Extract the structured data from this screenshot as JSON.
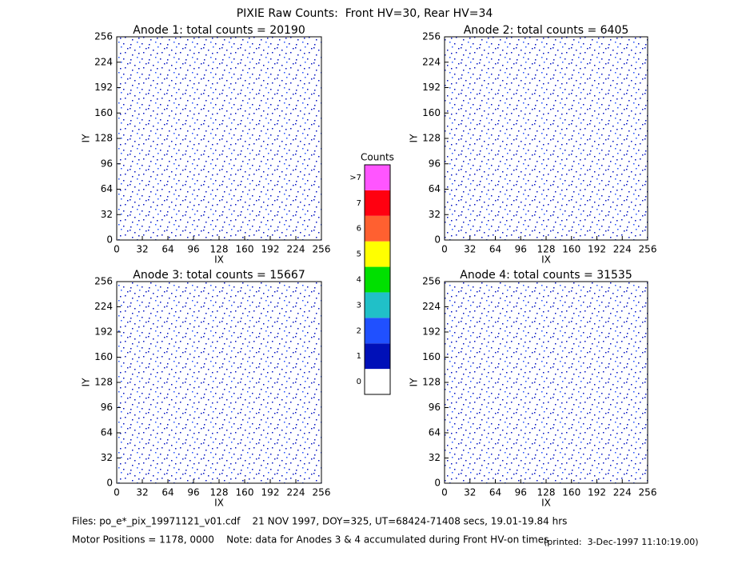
{
  "title": "PIXIE Raw Counts:  Front HV=30, Rear HV=34",
  "chart_data": [
    {
      "type": "heatmap",
      "title": "Anode 1: total counts = 20190",
      "xlabel": "IX",
      "ylabel": "IY",
      "xlim": [
        0,
        256
      ],
      "ylim": [
        0,
        256
      ],
      "xticks": [
        0,
        32,
        64,
        96,
        128,
        160,
        192,
        224,
        256
      ],
      "yticks": [
        0,
        32,
        64,
        96,
        128,
        160,
        192,
        224,
        256
      ]
    },
    {
      "type": "heatmap",
      "title": "Anode 2: total counts = 6405",
      "xlabel": "IX",
      "ylabel": "IY",
      "xlim": [
        0,
        256
      ],
      "ylim": [
        0,
        256
      ],
      "xticks": [
        0,
        32,
        64,
        96,
        128,
        160,
        192,
        224,
        256
      ],
      "yticks": [
        0,
        32,
        64,
        96,
        128,
        160,
        192,
        224,
        256
      ]
    },
    {
      "type": "heatmap",
      "title": "Anode 3: total counts = 15667",
      "xlabel": "IX",
      "ylabel": "IY",
      "xlim": [
        0,
        256
      ],
      "ylim": [
        0,
        256
      ],
      "xticks": [
        0,
        32,
        64,
        96,
        128,
        160,
        192,
        224,
        256
      ],
      "yticks": [
        0,
        32,
        64,
        96,
        128,
        160,
        192,
        224,
        256
      ]
    },
    {
      "type": "heatmap",
      "title": "Anode 4: total counts = 31535",
      "xlabel": "IX",
      "ylabel": "IY",
      "xlim": [
        0,
        256
      ],
      "ylim": [
        0,
        256
      ],
      "xticks": [
        0,
        32,
        64,
        96,
        128,
        160,
        192,
        224,
        256
      ],
      "yticks": [
        0,
        32,
        64,
        96,
        128,
        160,
        192,
        224,
        256
      ]
    }
  ],
  "colorbar": {
    "title": "Counts",
    "levels": [
      0,
      1,
      2,
      3,
      4,
      5,
      6,
      7,
      {
        "value": 8,
        "label": ">7"
      }
    ],
    "colors": [
      "#ffffff",
      "#0010b8",
      "#2050ff",
      "#20c0c8",
      "#00e000",
      "#ffff00",
      "#ff6030",
      "#ff0010",
      "#ff55ff"
    ]
  },
  "footer": {
    "files": "Files: po_e*_pix_19971121_v01.cdf    21 NOV 1997, DOY=325, UT=68424-71408 secs, 19.01-19.84 hrs",
    "motor": "Motor Positions = 1178, 0000    Note: data for Anodes 3 & 4 accumulated during Front HV-on times",
    "printed": "(printed:  3-Dec-1997 11:10:19.00)"
  }
}
